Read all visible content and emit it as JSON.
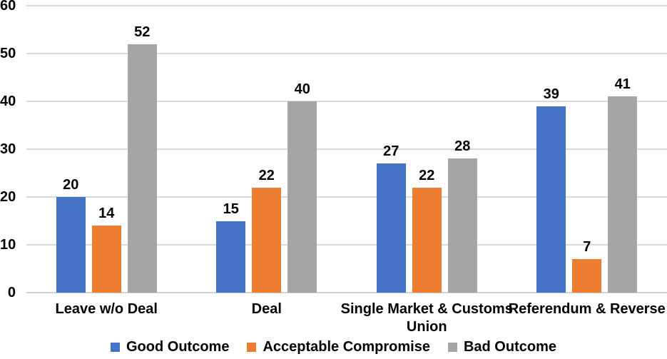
{
  "chart_data": {
    "type": "bar",
    "title": "",
    "xlabel": "",
    "ylabel": "",
    "categories": [
      "Leave w/o Deal",
      "Deal",
      "Single Market & Customs Union",
      "Referendum & Reverse"
    ],
    "series": [
      {
        "name": "Good Outcome",
        "color": "#4472C4",
        "values": [
          20,
          15,
          27,
          39
        ]
      },
      {
        "name": "Acceptable Compromise",
        "color": "#ED7D31",
        "values": [
          14,
          22,
          22,
          7
        ]
      },
      {
        "name": "Bad Outcome",
        "color": "#A5A5A5",
        "values": [
          52,
          40,
          28,
          41
        ]
      }
    ],
    "ylim": [
      0,
      60
    ],
    "ytick_step": 10,
    "yticks": [
      0,
      10,
      20,
      30,
      40,
      50,
      60
    ],
    "grid": true,
    "data_labels": true,
    "legend_position": "bottom",
    "gridline_color": "#D9D9D9",
    "axis_line_color": "#D2D2D2",
    "text_color": "#000000",
    "background": "#FFFFFF"
  }
}
